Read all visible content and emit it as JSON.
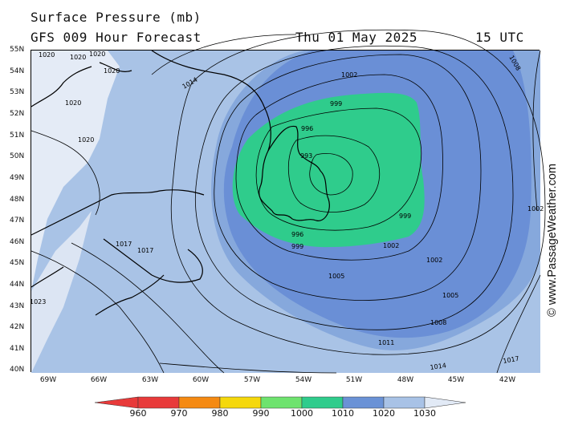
{
  "header": {
    "title": "Surface Pressure (mb)",
    "subtitle": "GFS 009 Hour Forecast",
    "date": "Thu 01 May 2025",
    "time": "15 UTC"
  },
  "watermark": "© www.PassageWeather.com",
  "lat_labels": [
    "55N",
    "54N",
    "53N",
    "52N",
    "51N",
    "50N",
    "49N",
    "48N",
    "47N",
    "46N",
    "45N",
    "44N",
    "43N",
    "42N",
    "41N",
    "40N"
  ],
  "lon_labels": [
    "69W",
    "66W",
    "63W",
    "60W",
    "57W",
    "54W",
    "51W",
    "48W",
    "45W",
    "42W"
  ],
  "isobar_labels": [
    "1020",
    "1020",
    "1020",
    "1020",
    "1020",
    "1020",
    "1014",
    "1002",
    "999",
    "996",
    "993",
    "999",
    "996",
    "999",
    "1002",
    "1002",
    "1005",
    "1005",
    "1008",
    "1011",
    "1014",
    "1017",
    "1017",
    "1017",
    "1023",
    "1008",
    "1002"
  ],
  "colorbar": {
    "labels": [
      "960",
      "970",
      "980",
      "990",
      "1000",
      "1010",
      "1020",
      "1030"
    ],
    "colors": [
      "#e83a3a",
      "#f58a12",
      "#f5d80c",
      "#6ee36e",
      "#2fcc8c",
      "#6a92d6",
      "#a8c2e6",
      "#e2eaf6"
    ]
  },
  "fill_colors": {
    "land_high": "#e4ebf6",
    "p1014_1020": "#a9c3e6",
    "p1008_1014": "#86a8dc",
    "p1002_1008": "#6a8fd6",
    "p990_1000": "#2fcc8c"
  }
}
